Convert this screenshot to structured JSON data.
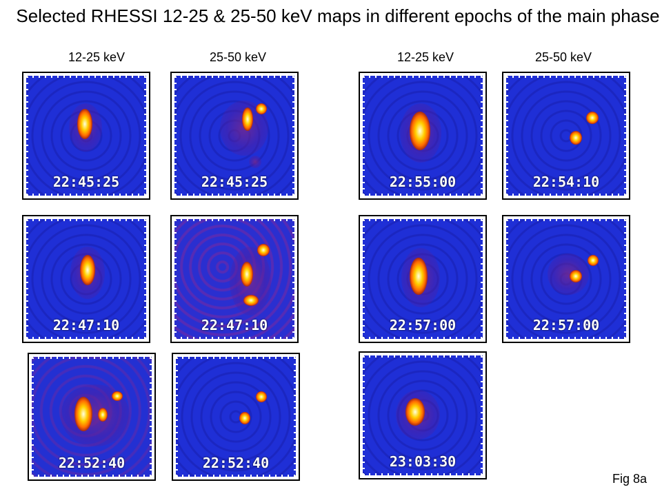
{
  "title": "Selected RHESSI 12-25 & 25-50 keV maps in different epochs of the main phase",
  "column_headers": [
    "12-25 keV",
    "25-50 keV",
    "12-25 keV",
    "25-50 keV"
  ],
  "panels": {
    "r1c1": "22:45:25",
    "r1c2": "22:45:25",
    "r1c3": "22:55:00",
    "r1c4": "22:54:10",
    "r2c1": "22:47:10",
    "r2c2": "22:47:10",
    "r2c3": "22:57:00",
    "r2c4": "22:57:00",
    "r3c1": "22:52:40",
    "r3c2": "22:52:40",
    "r3c3": "23:03:30"
  },
  "figure_label": "Fig 8a",
  "colors": {
    "background": "#1f2fd6",
    "source_core": "#ffd000",
    "source_edge": "#7a0a20"
  }
}
